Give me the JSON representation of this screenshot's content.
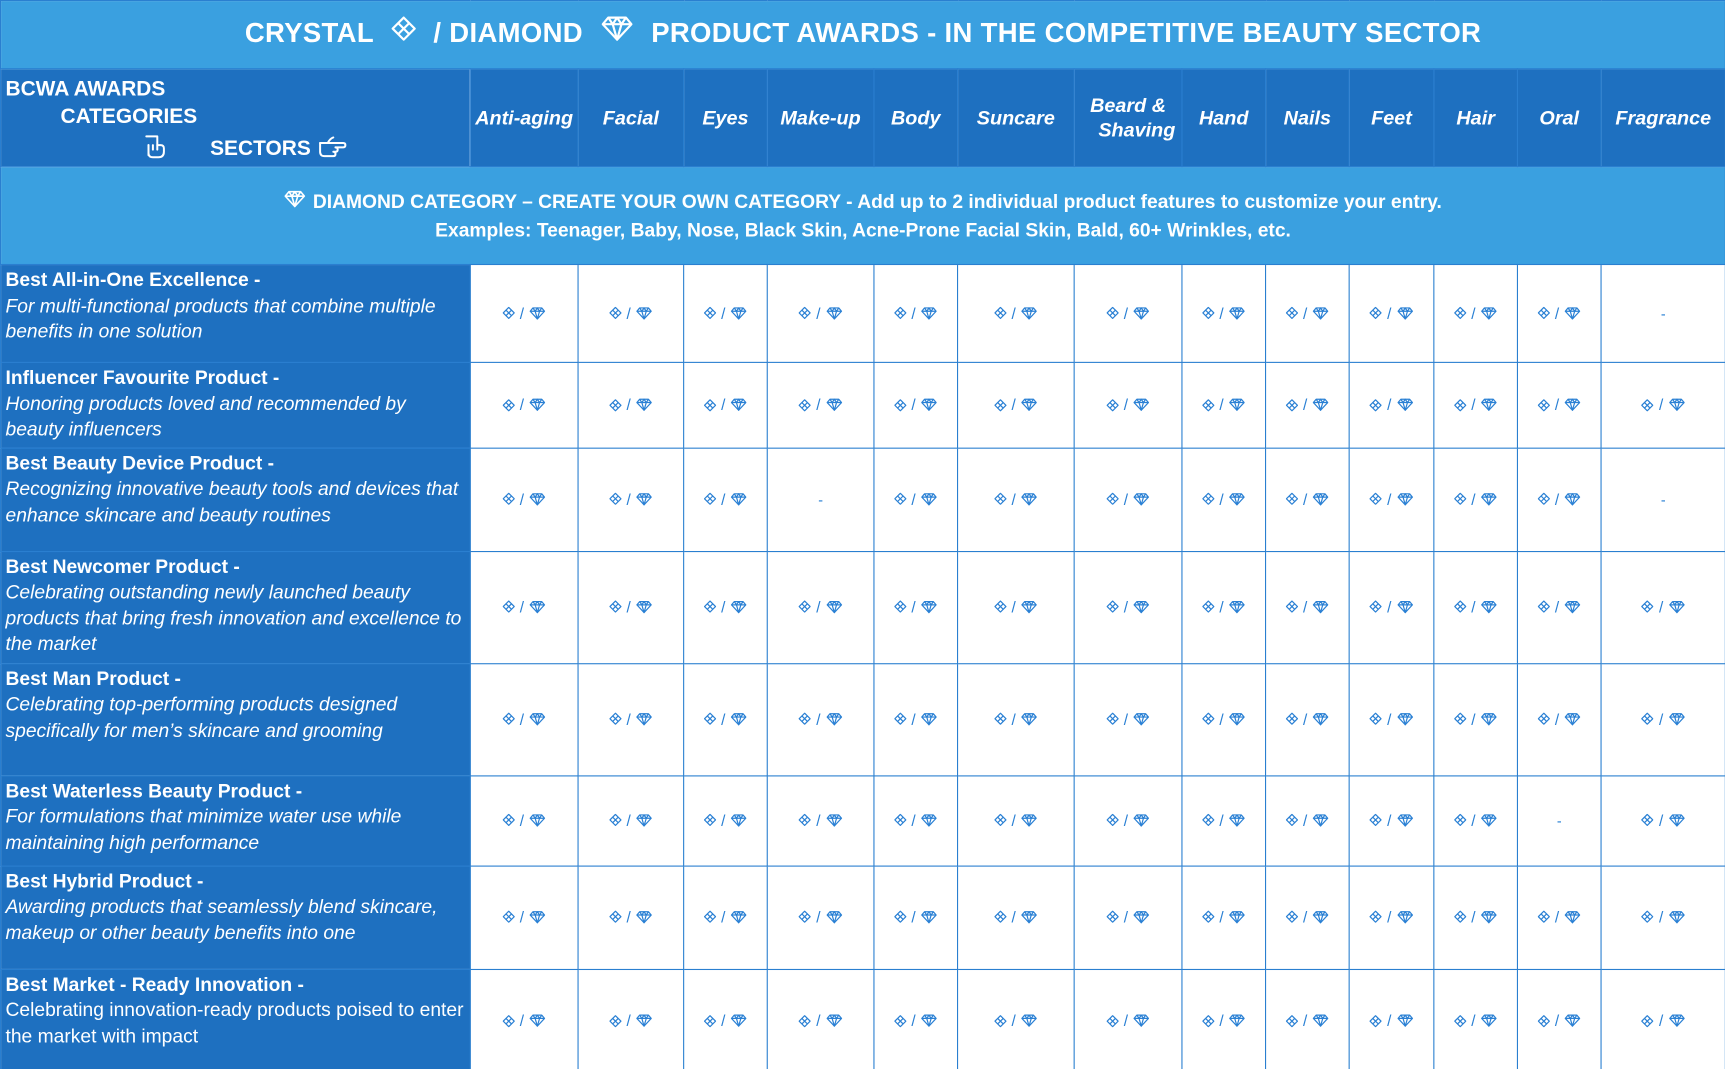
{
  "title": {
    "part1": "CRYSTAL",
    "part2": "/ DIAMOND",
    "part3": "PRODUCT AWARDS - IN THE COMPETITIVE BEAUTY SECTOR"
  },
  "corner": {
    "line1": "BCWA AWARDS",
    "line2": "CATEGORIES",
    "line3": "SECTORS"
  },
  "sectors": [
    {
      "label": "Anti-aging"
    },
    {
      "label": "Facial"
    },
    {
      "label": "Eyes"
    },
    {
      "label": "Make-up"
    },
    {
      "label": "Body"
    },
    {
      "label": "Suncare"
    },
    {
      "label": "Beard &",
      "label2": "Shaving"
    },
    {
      "label": "Hand"
    },
    {
      "label": "Nails"
    },
    {
      "label": "Feet"
    },
    {
      "label": "Hair"
    },
    {
      "label": "Oral"
    },
    {
      "label": "Fragrance"
    }
  ],
  "diamond_banner": {
    "line1": "DIAMOND CATEGORY – CREATE YOUR OWN CATEGORY -  Add up to 2 individual product features to customize your entry.",
    "line2": "Examples: Teenager, Baby, Nose, Black Skin, Acne-Prone Facial Skin, Bald, 60+ Wrinkles, etc."
  },
  "symbols": {
    "slash": "/",
    "dash": "-",
    "crystal_icon": "crystal-icon",
    "diamond_icon": "diamond-icon",
    "pointing_down_icon": "hand-pointing-down-icon",
    "pointing_right_icon": "hand-pointing-right-icon"
  },
  "colors": {
    "title_bg": "#3aa0e0",
    "header_bg": "#1e70c0",
    "border": "#2a7fd0",
    "icon": "#2a80d4"
  },
  "categories": [
    {
      "title": "Best All-in-One Excellence -",
      "desc": "For multi-functional products that combine multiple benefits in one solution",
      "italic": true,
      "cells": [
        "award",
        "award",
        "award",
        "award",
        "award",
        "award",
        "award",
        "award",
        "award",
        "award",
        "award",
        "award",
        "dash"
      ]
    },
    {
      "title": "Influencer Favourite Product -",
      "desc": "Honoring products loved and recommended by beauty influencers",
      "italic": true,
      "cells": [
        "award",
        "award",
        "award",
        "award",
        "award",
        "award",
        "award",
        "award",
        "award",
        "award",
        "award",
        "award",
        "award"
      ]
    },
    {
      "title": "Best Beauty Device Product -",
      "desc": "Recognizing innovative beauty tools and devices that enhance skincare and beauty routines",
      "italic": true,
      "cells": [
        "award",
        "award",
        "award",
        "dash",
        "award",
        "award",
        "award",
        "award",
        "award",
        "award",
        "award",
        "award",
        "dash"
      ]
    },
    {
      "title": "Best Newcomer Product -",
      "desc": "Celebrating outstanding newly launched beauty products that bring fresh innovation and excellence to the market",
      "italic": true,
      "cells": [
        "award",
        "award",
        "award",
        "award",
        "award",
        "award",
        "award",
        "award",
        "award",
        "award",
        "award",
        "award",
        "award"
      ]
    },
    {
      "title": "Best Man Product -",
      "desc": "Celebrating top-performing products designed specifically for men’s skincare and grooming",
      "italic": true,
      "cells": [
        "award",
        "award",
        "award",
        "award",
        "award",
        "award",
        "award",
        "award",
        "award",
        "award",
        "award",
        "award",
        "award"
      ]
    },
    {
      "title": "Best Waterless Beauty Product -",
      "desc": "For formulations that minimize water use while maintaining high performance",
      "italic": true,
      "cells": [
        "award",
        "award",
        "award",
        "award",
        "award",
        "award",
        "award",
        "award",
        "award",
        "award",
        "award",
        "dash",
        "award"
      ]
    },
    {
      "title": "Best Hybrid Product -",
      "desc": "Awarding products that seamlessly blend skincare, makeup or other beauty benefits into one",
      "italic": true,
      "cells": [
        "award",
        "award",
        "award",
        "award",
        "award",
        "award",
        "award",
        "award",
        "award",
        "award",
        "award",
        "award",
        "award"
      ]
    },
    {
      "title": "Best Market - Ready Innovation -",
      "desc": "Celebrating innovation-ready products poised to enter the market with impact",
      "italic": false,
      "cells": [
        "award",
        "award",
        "award",
        "award",
        "award",
        "award",
        "award",
        "award",
        "award",
        "award",
        "award",
        "award",
        "award"
      ]
    }
  ]
}
